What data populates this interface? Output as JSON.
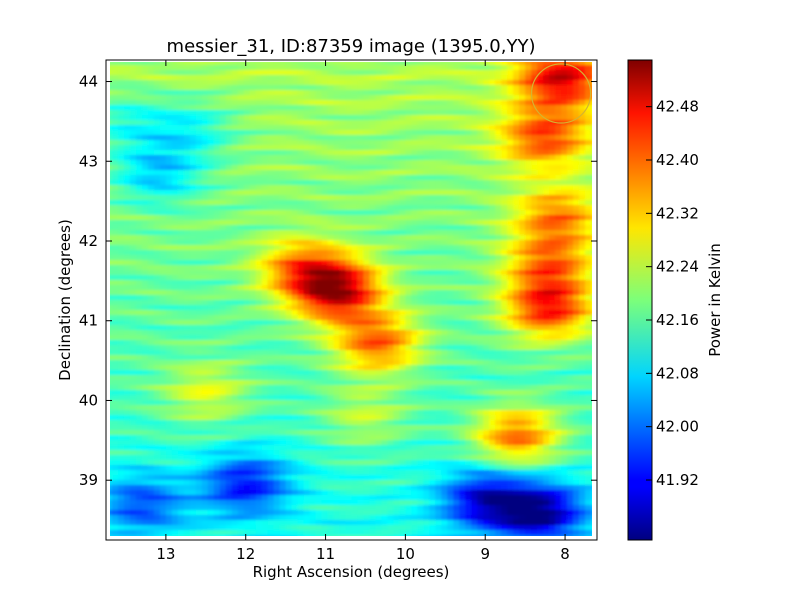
{
  "chart_data": {
    "type": "heatmap",
    "title": "messier_31, ID:87359 image (1395.0,YY)",
    "xlabel": "Right Ascension (degrees)",
    "ylabel": "Declination (degrees)",
    "colorbar_label": "Power in Kelvin",
    "xlim": [
      13.75,
      7.6
    ],
    "ylim": [
      38.25,
      44.27
    ],
    "x_ticks": [
      13,
      12,
      11,
      10,
      9,
      8
    ],
    "y_ticks": [
      39,
      40,
      41,
      42,
      43,
      44
    ],
    "colorbar_range": [
      41.83,
      42.55
    ],
    "colorbar_ticks": [
      "41.92",
      "42.00",
      "42.08",
      "42.16",
      "42.24",
      "42.32",
      "42.40",
      "42.48"
    ],
    "colormap": "jet",
    "background_level": 42.17,
    "features": [
      {
        "ra": 10.85,
        "dec": 41.38,
        "value": 42.5
      },
      {
        "ra": 10.35,
        "dec": 40.72,
        "value": 42.4
      },
      {
        "ra": 11.3,
        "dec": 41.65,
        "value": 42.36
      },
      {
        "ra": 8.6,
        "dec": 39.55,
        "value": 42.41
      },
      {
        "ra": 8.05,
        "dec": 44.05,
        "value": 42.44
      },
      {
        "ra": 8.25,
        "dec": 43.3,
        "value": 42.38
      },
      {
        "ra": 8.2,
        "dec": 41.15,
        "value": 42.44
      },
      {
        "ra": 8.2,
        "dec": 41.7,
        "value": 42.36
      },
      {
        "ra": 8.1,
        "dec": 42.3,
        "value": 42.35
      },
      {
        "ra": 12.5,
        "dec": 40.1,
        "value": 42.28
      },
      {
        "ra": 10.5,
        "dec": 39.8,
        "value": 42.26
      },
      {
        "ra": 12.0,
        "dec": 38.95,
        "value": 41.97
      },
      {
        "ra": 9.0,
        "dec": 38.75,
        "value": 41.94
      },
      {
        "ra": 8.3,
        "dec": 38.6,
        "value": 41.9
      },
      {
        "ra": 13.3,
        "dec": 38.7,
        "value": 42.02
      },
      {
        "ra": 13.1,
        "dec": 42.85,
        "value": 42.04
      },
      {
        "ra": 12.7,
        "dec": 43.4,
        "value": 42.07
      },
      {
        "ra": 13.5,
        "dec": 43.5,
        "value": 42.09
      }
    ],
    "annotations": [
      {
        "shape": "circle",
        "ra": 8.05,
        "dec": 43.85,
        "radius_deg": 0.37,
        "color": "#d4b430"
      }
    ]
  }
}
